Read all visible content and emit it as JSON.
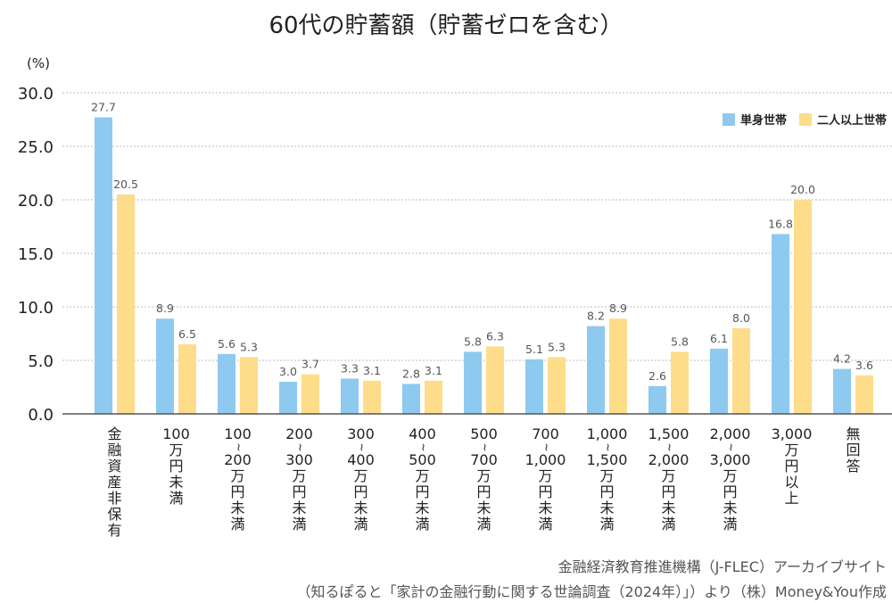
{
  "colors": {
    "single": "#8ec9ef",
    "couple": "#fddd8a",
    "grid": "#bbbbbb",
    "axis": "#555555"
  },
  "chart_data": {
    "type": "bar",
    "title": "60代の貯蓄額（貯蓄ゼロを含む）",
    "ylabel": "(%)",
    "ylim": [
      0,
      30
    ],
    "yticks": [
      "0.0",
      "5.0",
      "10.0",
      "15.0",
      "20.0",
      "25.0",
      "30.0"
    ],
    "grid": true,
    "legend_position": "top-right",
    "categories": [
      [
        "金",
        "融",
        "資",
        "産",
        "非",
        "保",
        "有"
      ],
      [
        "100",
        "万",
        "円",
        "未",
        "満"
      ],
      [
        "100",
        "~",
        "200",
        "万",
        "円",
        "未",
        "満"
      ],
      [
        "200",
        "~",
        "300",
        "万",
        "円",
        "未",
        "満"
      ],
      [
        "300",
        "~",
        "400",
        "万",
        "円",
        "未",
        "満"
      ],
      [
        "400",
        "~",
        "500",
        "万",
        "円",
        "未",
        "満"
      ],
      [
        "500",
        "~",
        "700",
        "万",
        "円",
        "未",
        "満"
      ],
      [
        "700",
        "~",
        "1,000",
        "万",
        "円",
        "未",
        "満"
      ],
      [
        "1,000",
        "~",
        "1,500",
        "万",
        "円",
        "未",
        "満"
      ],
      [
        "1,500",
        "~",
        "2,000",
        "万",
        "円",
        "未",
        "満"
      ],
      [
        "2,000",
        "~",
        "3,000",
        "万",
        "円",
        "未",
        "満"
      ],
      [
        "3,000",
        "万",
        "円",
        "以",
        "上"
      ],
      [
        "無",
        "回",
        "答"
      ]
    ],
    "series": [
      {
        "name": "単身世帯",
        "values": [
          27.7,
          8.9,
          5.6,
          3.0,
          3.3,
          2.8,
          5.8,
          5.1,
          8.2,
          2.6,
          6.1,
          16.8,
          4.2
        ]
      },
      {
        "name": "二人以上世帯",
        "values": [
          20.5,
          6.5,
          5.3,
          3.7,
          3.1,
          3.1,
          6.3,
          5.3,
          8.9,
          5.8,
          8.0,
          20.0,
          3.6
        ]
      }
    ]
  },
  "footer": {
    "line1": "金融経済教育推進機構（J-FLEC）アーカイブサイト",
    "line2": "（知るぽると「家計の金融行動に関する世論調査（2024年）」）より（株）Money&You作成"
  }
}
